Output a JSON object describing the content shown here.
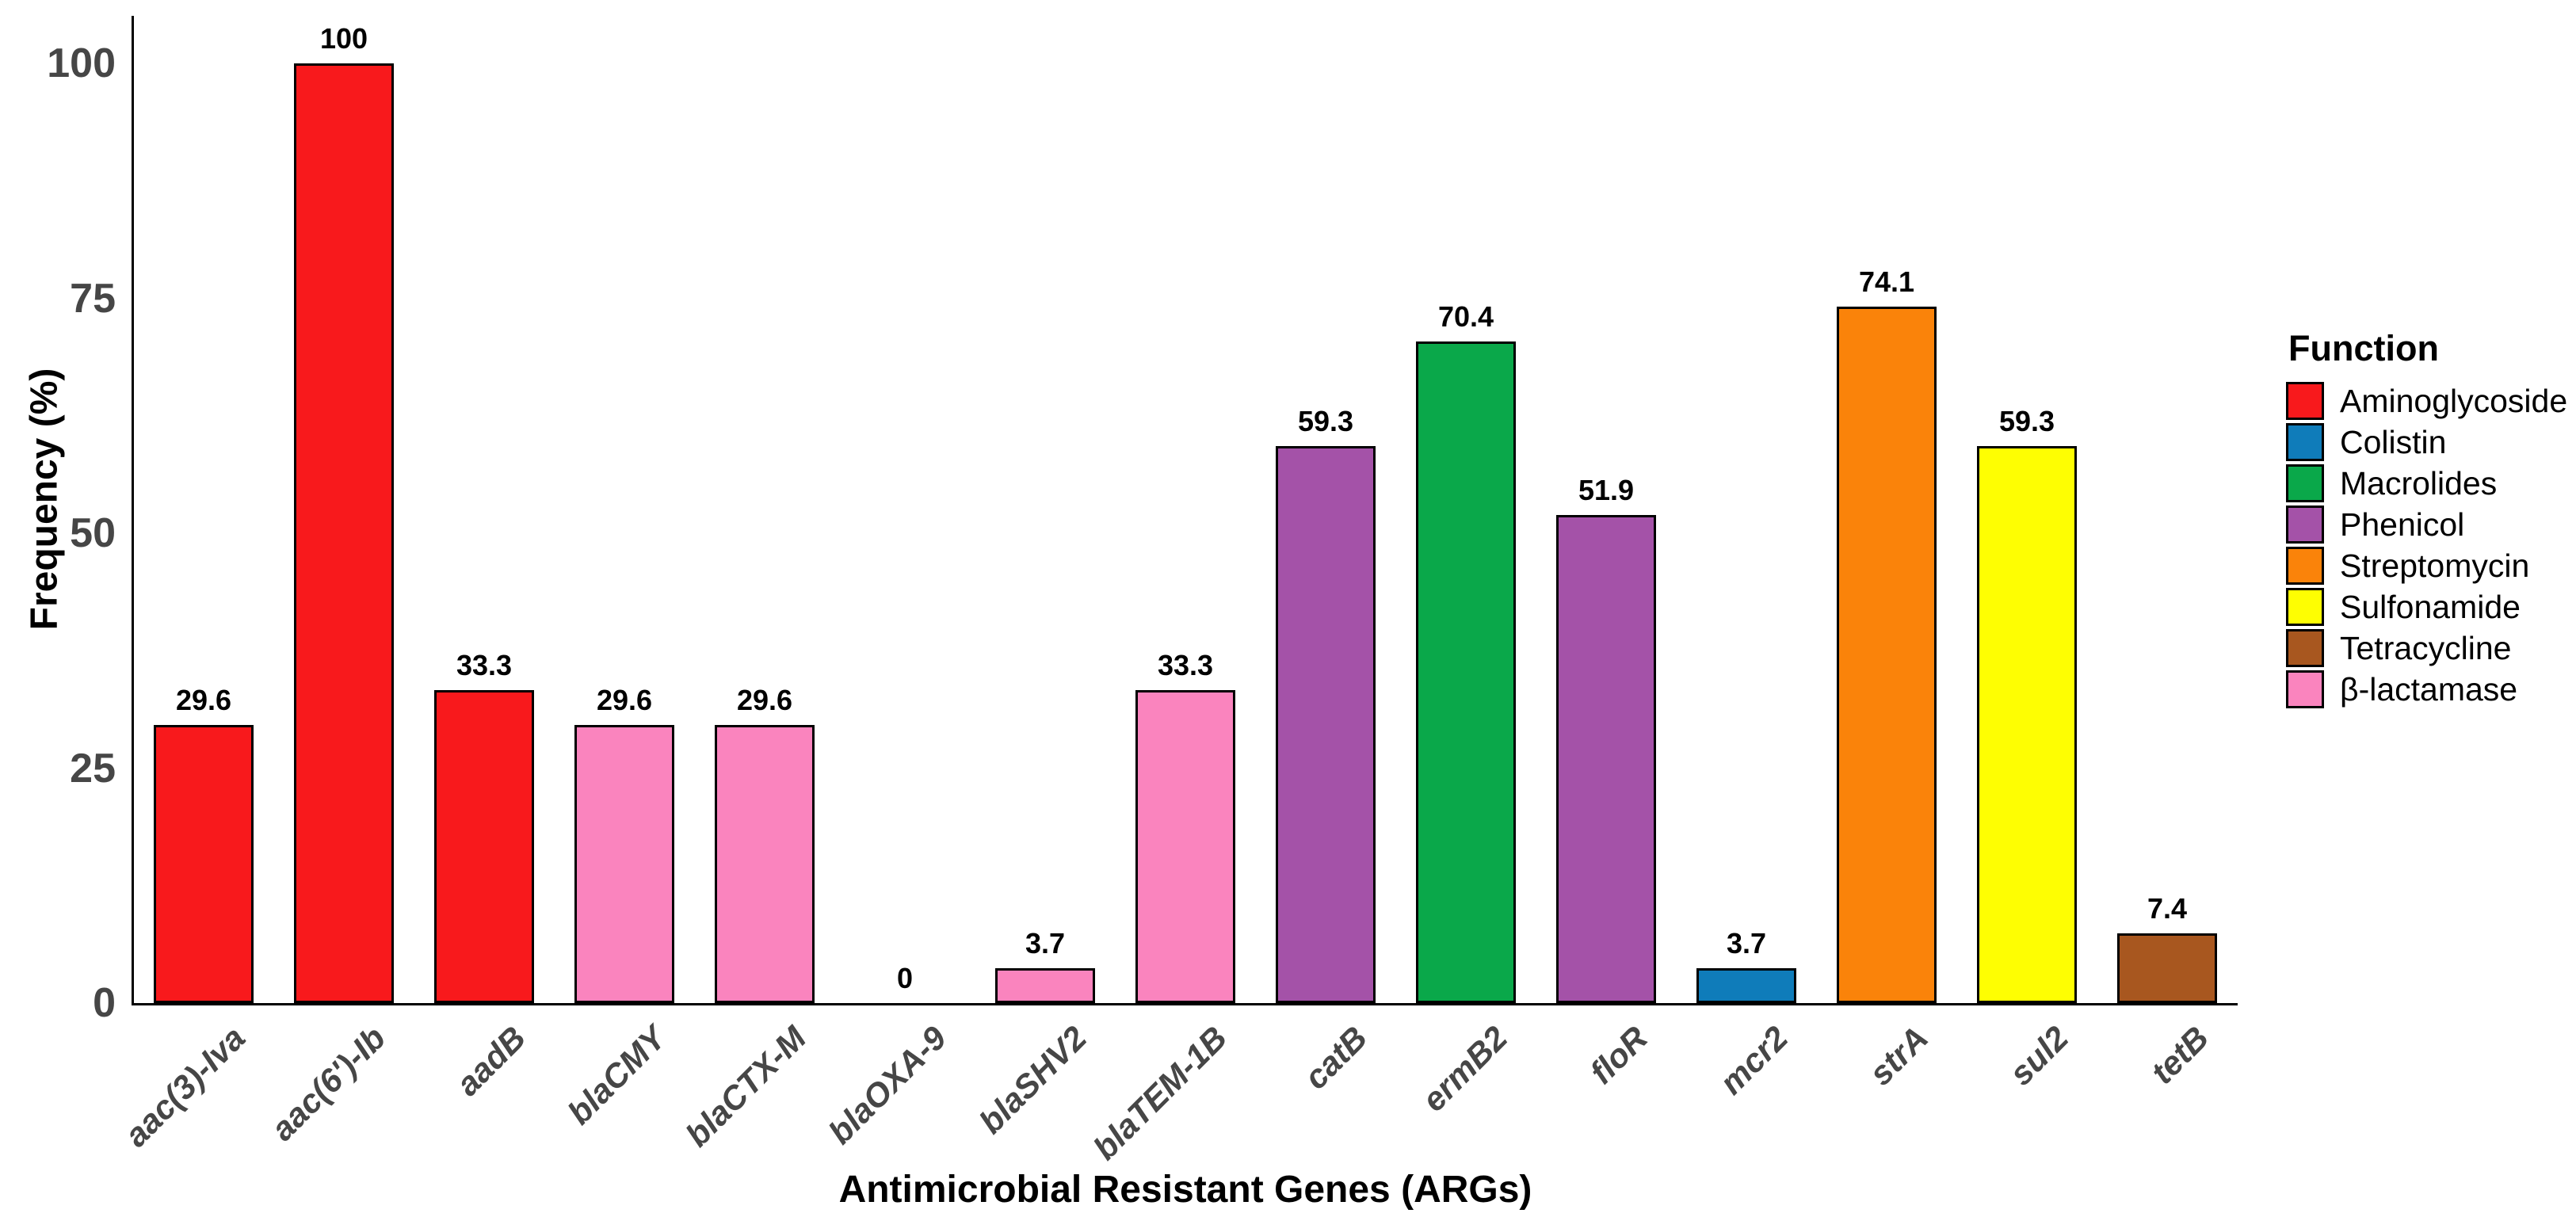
{
  "chart_data": {
    "type": "bar",
    "title": "",
    "xlabel": "Antimicrobial Resistant Genes (ARGs)",
    "ylabel": "Frequency (%)",
    "ylim": [
      0,
      105
    ],
    "yticks": [
      0,
      25,
      50,
      75,
      100
    ],
    "grid": false,
    "legend_position": "right",
    "categories": [
      "aac(3)-Iva",
      "aac(6')-Ib",
      "aadB",
      "blaCMY",
      "blaCTX-M",
      "blaOXA-9",
      "blaSHV2",
      "blaTEM-1B",
      "catB",
      "ermB2",
      "floR",
      "mcr2",
      "strA",
      "sul2",
      "tetB"
    ],
    "values": [
      29.6,
      100,
      33.3,
      29.6,
      29.6,
      0,
      3.7,
      33.3,
      59.3,
      70.4,
      51.9,
      3.7,
      74.1,
      59.3,
      7.4
    ],
    "value_labels": [
      "29.6",
      "100",
      "33.3",
      "29.6",
      "29.6",
      "0",
      "3.7",
      "33.3",
      "59.3",
      "70.4",
      "51.9",
      "3.7",
      "74.1",
      "59.3",
      "7.4"
    ],
    "bar_functions": [
      "Aminoglycoside",
      "Aminoglycoside",
      "Aminoglycoside",
      "β-lactamase",
      "β-lactamase",
      "β-lactamase",
      "β-lactamase",
      "β-lactamase",
      "Phenicol",
      "Macrolides",
      "Phenicol",
      "Colistin",
      "Streptomycin",
      "Sulfonamide",
      "Tetracycline"
    ],
    "legend": {
      "title": "Function",
      "entries": [
        {
          "label": "Aminoglycoside",
          "color": "#F8191C"
        },
        {
          "label": "Colistin",
          "color": "#0F7CBA"
        },
        {
          "label": "Macrolides",
          "color": "#0AA84A"
        },
        {
          "label": "Phenicol",
          "color": "#A452A8"
        },
        {
          "label": "Streptomycin",
          "color": "#FA830A"
        },
        {
          "label": "Sulfonamide",
          "color": "#FEFE02"
        },
        {
          "label": "Tetracycline",
          "color": "#A8571F"
        },
        {
          "label": "β-lactamase",
          "color": "#FA84BE"
        }
      ]
    },
    "colors": {
      "background": "#ffffff",
      "axis_line": "#000000",
      "axis_tick_text": "#464646",
      "axis_title_text": "#000000",
      "bar_border": "#000000",
      "value_label_text": "#000000"
    }
  }
}
